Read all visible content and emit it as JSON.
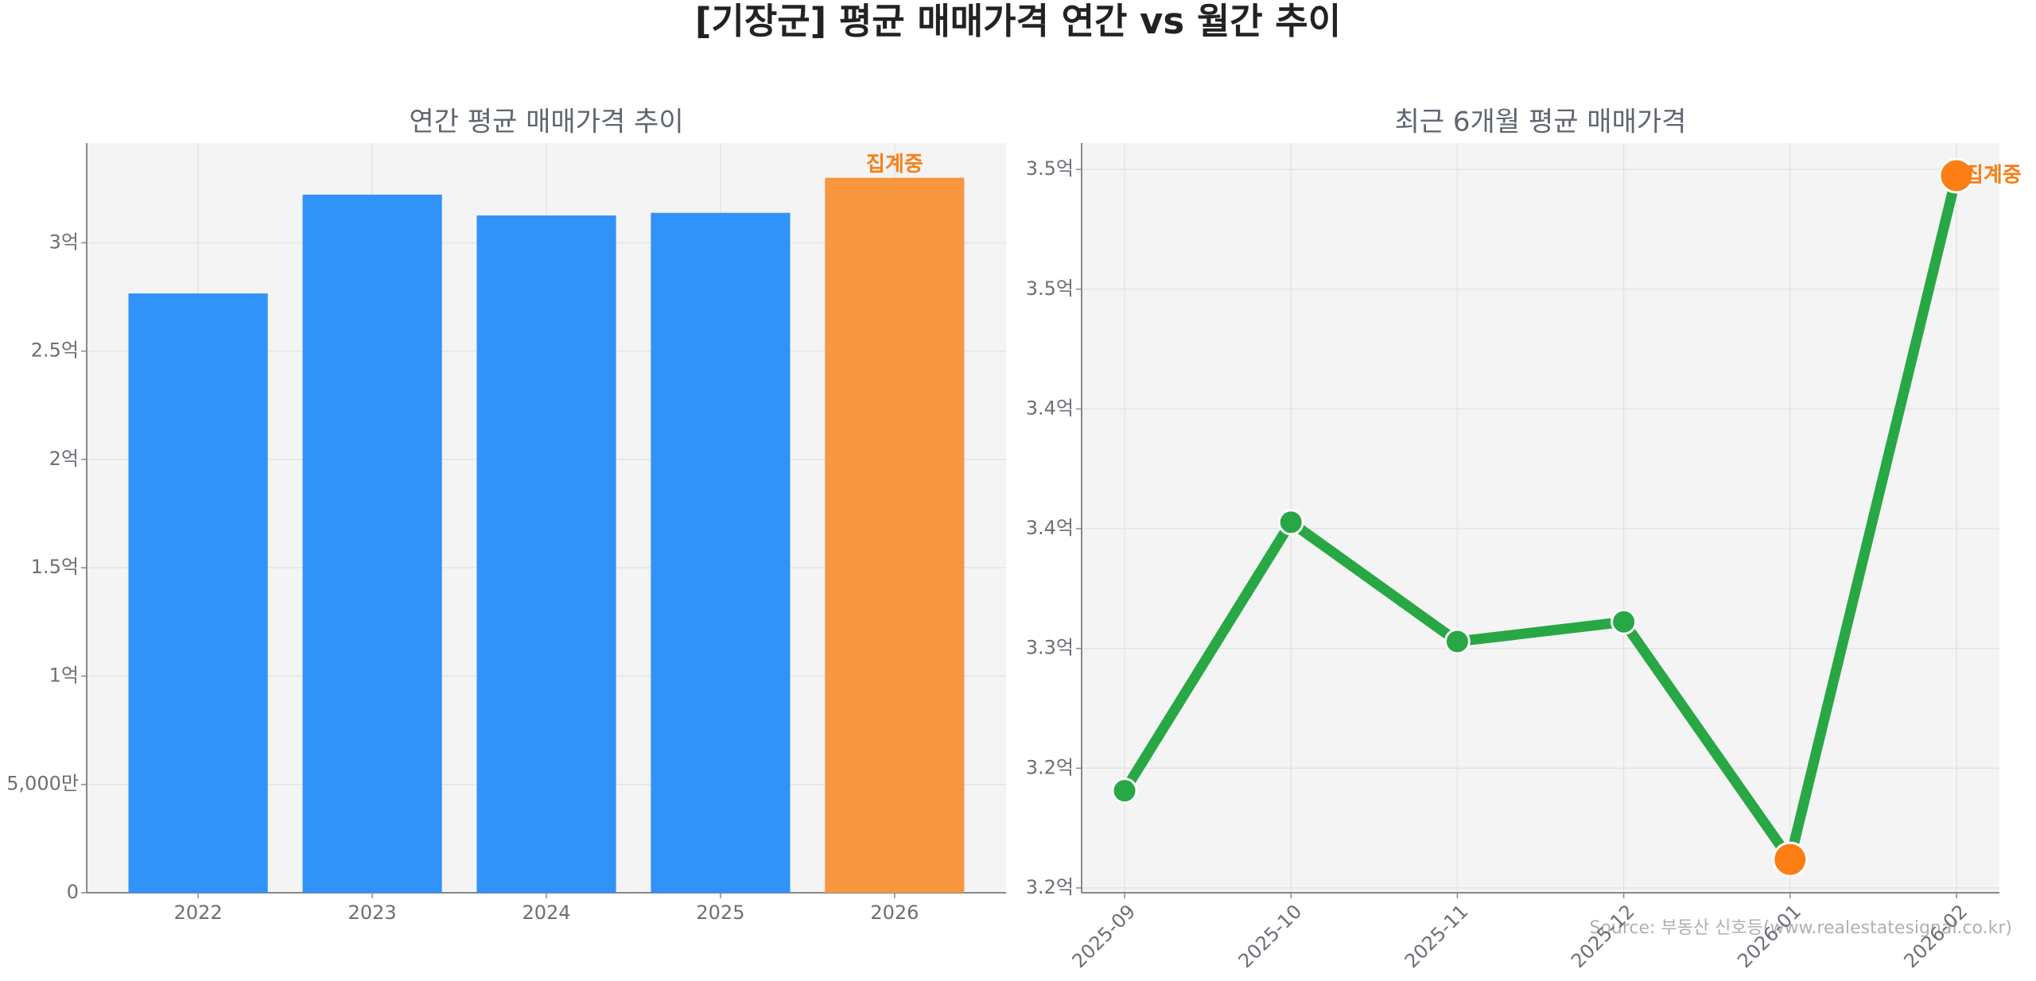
{
  "title": "[기장군] 평균 매매가격 연간 vs 월간 추이",
  "source": "Source: 부동산 신호등(www.realestatesignal.co.kr)",
  "chart_data": [
    {
      "type": "bar",
      "title": "연간 평균 매매가격 추이",
      "categories": [
        "2022",
        "2023",
        "2024",
        "2025",
        "2026"
      ],
      "values": [
        276600000,
        322200000,
        312600000,
        313800000,
        330000000
      ],
      "colors": [
        "#3192f9",
        "#3192f9",
        "#3192f9",
        "#3192f9",
        "#f7973f"
      ],
      "annotation": {
        "text": "집계중",
        "category": "2026",
        "color": "#f77f17"
      },
      "ylim": [
        0,
        346000000
      ],
      "yticks": [
        {
          "value": 0,
          "label": "0"
        },
        {
          "value": 50000000,
          "label": "5,000만"
        },
        {
          "value": 100000000,
          "label": "1억"
        },
        {
          "value": 150000000,
          "label": "1.5억"
        },
        {
          "value": 200000000,
          "label": "2억"
        },
        {
          "value": 250000000,
          "label": "2.5억"
        },
        {
          "value": 300000000,
          "label": "3억"
        }
      ],
      "grid": true
    },
    {
      "type": "line",
      "title": "최근 6개월 평균 매매가격",
      "categories": [
        "2025-09",
        "2025-10",
        "2025-11",
        "2025-12",
        "2026-01",
        "2026-02"
      ],
      "values": [
        324060000,
        335270000,
        330290000,
        331110000,
        321190000,
        349740000
      ],
      "color": "#28a745",
      "marker_colors": [
        "#28a745",
        "#28a745",
        "#28a745",
        "#28a745",
        "#fd7e14",
        "#fd7e14"
      ],
      "annotation": {
        "text": "집계중",
        "category": "2026-02",
        "color": "#f77f17"
      },
      "ylim": [
        319800000,
        351100000
      ],
      "yticks": [
        {
          "value": 320000000,
          "label": "3.2억"
        },
        {
          "value": 325000000,
          "label": "3.2억"
        },
        {
          "value": 330000000,
          "label": "3.3억"
        },
        {
          "value": 335000000,
          "label": "3.4억"
        },
        {
          "value": 340000000,
          "label": "3.4억"
        },
        {
          "value": 345000000,
          "label": "3.5억"
        },
        {
          "value": 350000000,
          "label": "3.5억"
        }
      ],
      "grid": true
    }
  ]
}
